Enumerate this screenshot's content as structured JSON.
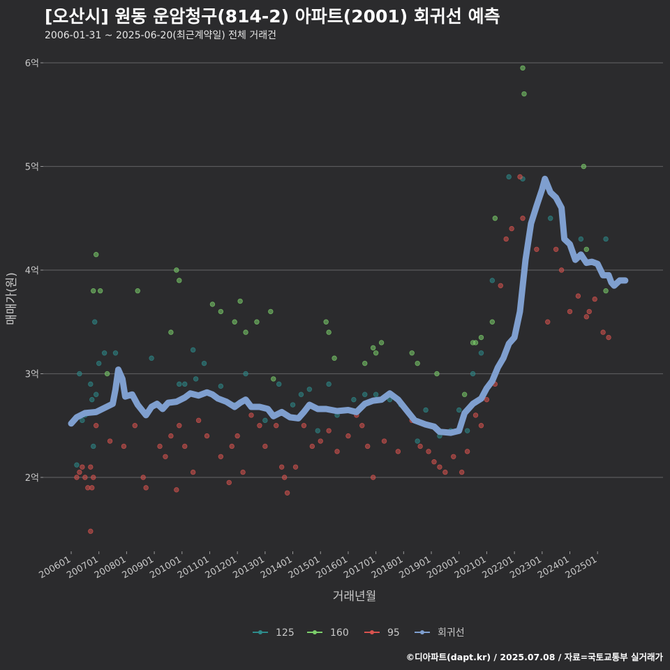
{
  "header": {
    "title": "[오산시] 원동 운암청구(814-2) 아파트(2001) 회귀선 예측",
    "subtitle": "2006-01-31 ~ 2025-06-20(최근계약일) 전체 거래건"
  },
  "footer": {
    "credit": "©디아파트(dapt.kr) / 2025.07.08 / 자료=국토교통부 실거래가"
  },
  "colors": {
    "background": "#2b2b2d",
    "grid": "#5a5a5c",
    "s125": "#2e8b8b",
    "s160": "#7ccf6b",
    "s95": "#d9534f",
    "regression": "#7f9fcf"
  },
  "chart_data": {
    "type": "scatter",
    "title": "[오산시] 원동 운암청구(814-2) 아파트(2001) 회귀선 예측",
    "xlabel": "거래년월",
    "ylabel": "매매가(원)",
    "xlim": [
      2006.0,
      2025.6
    ],
    "ylim": [
      1.3,
      6.4
    ],
    "y_unit": "억",
    "yticks": [
      2,
      3,
      4,
      5,
      6
    ],
    "ytick_labels": [
      "2억",
      "3억",
      "4억",
      "5억",
      "6억"
    ],
    "xticks": [
      2006,
      2007,
      2008,
      2009,
      2010,
      2011,
      2012,
      2013,
      2014,
      2015,
      2016,
      2017,
      2018,
      2019,
      2020,
      2021,
      2022,
      2023,
      2024,
      2025
    ],
    "xtick_labels": [
      "200601",
      "200701",
      "200801",
      "200901",
      "201001",
      "201101",
      "201201",
      "201301",
      "201401",
      "201501",
      "201601",
      "201701",
      "201801",
      "201901",
      "202001",
      "202101",
      "202201",
      "202301",
      "202401",
      "202501"
    ],
    "grid": "horizontal",
    "legend_position": "bottom",
    "series": [
      {
        "name": "125",
        "kind": "points",
        "color": "#2e8b8b",
        "points": [
          [
            2006.2,
            2.12
          ],
          [
            2006.3,
            3.0
          ],
          [
            2006.4,
            2.55
          ],
          [
            2006.5,
            2.6
          ],
          [
            2006.7,
            2.9
          ],
          [
            2006.75,
            2.75
          ],
          [
            2006.8,
            2.3
          ],
          [
            2006.85,
            3.5
          ],
          [
            2006.9,
            2.8
          ],
          [
            2007.0,
            3.1
          ],
          [
            2007.2,
            3.2
          ],
          [
            2007.6,
            3.2
          ],
          [
            2008.9,
            3.15
          ],
          [
            2009.9,
            2.9
          ],
          [
            2010.1,
            2.9
          ],
          [
            2010.4,
            3.23
          ],
          [
            2010.5,
            2.95
          ],
          [
            2010.8,
            3.1
          ],
          [
            2011.4,
            2.88
          ],
          [
            2011.9,
            2.7
          ],
          [
            2012.3,
            3.0
          ],
          [
            2013.0,
            2.55
          ],
          [
            2013.5,
            2.9
          ],
          [
            2014.0,
            2.7
          ],
          [
            2014.3,
            2.8
          ],
          [
            2014.6,
            2.85
          ],
          [
            2014.9,
            2.45
          ],
          [
            2015.3,
            2.9
          ],
          [
            2015.6,
            2.6
          ],
          [
            2016.2,
            2.75
          ],
          [
            2016.6,
            2.8
          ],
          [
            2017.0,
            2.8
          ],
          [
            2017.5,
            2.75
          ],
          [
            2017.9,
            2.7
          ],
          [
            2018.5,
            2.35
          ],
          [
            2018.8,
            2.65
          ],
          [
            2019.3,
            2.4
          ],
          [
            2019.7,
            2.45
          ],
          [
            2020.0,
            2.65
          ],
          [
            2020.3,
            2.45
          ],
          [
            2020.5,
            3.0
          ],
          [
            2020.8,
            3.2
          ],
          [
            2021.2,
            3.9
          ],
          [
            2021.8,
            4.9
          ],
          [
            2022.3,
            4.88
          ],
          [
            2023.3,
            4.5
          ],
          [
            2024.4,
            4.3
          ],
          [
            2025.3,
            4.3
          ]
        ]
      },
      {
        "name": "160",
        "kind": "points",
        "color": "#7ccf6b",
        "points": [
          [
            2006.8,
            3.8
          ],
          [
            2006.9,
            4.15
          ],
          [
            2007.05,
            3.8
          ],
          [
            2007.3,
            3.0
          ],
          [
            2008.4,
            3.8
          ],
          [
            2009.6,
            3.4
          ],
          [
            2009.8,
            4.0
          ],
          [
            2009.9,
            3.9
          ],
          [
            2011.1,
            3.67
          ],
          [
            2011.4,
            3.6
          ],
          [
            2011.9,
            3.5
          ],
          [
            2012.1,
            3.7
          ],
          [
            2012.3,
            3.4
          ],
          [
            2012.7,
            3.5
          ],
          [
            2013.2,
            3.6
          ],
          [
            2013.3,
            2.95
          ],
          [
            2015.2,
            3.5
          ],
          [
            2015.3,
            3.4
          ],
          [
            2015.5,
            3.15
          ],
          [
            2016.6,
            3.1
          ],
          [
            2016.9,
            3.25
          ],
          [
            2017.0,
            3.2
          ],
          [
            2017.2,
            3.3
          ],
          [
            2018.3,
            3.2
          ],
          [
            2018.5,
            3.1
          ],
          [
            2019.2,
            3.0
          ],
          [
            2020.2,
            2.8
          ],
          [
            2020.5,
            3.3
          ],
          [
            2020.6,
            3.3
          ],
          [
            2020.8,
            3.35
          ],
          [
            2021.2,
            3.5
          ],
          [
            2021.3,
            4.5
          ],
          [
            2022.3,
            5.95
          ],
          [
            2022.35,
            5.7
          ],
          [
            2024.5,
            5.0
          ],
          [
            2024.6,
            4.2
          ],
          [
            2025.1,
            4.0
          ],
          [
            2025.3,
            3.8
          ]
        ]
      },
      {
        "name": "95",
        "kind": "points",
        "color": "#d9534f",
        "points": [
          [
            2006.2,
            2.0
          ],
          [
            2006.3,
            2.05
          ],
          [
            2006.4,
            2.1
          ],
          [
            2006.5,
            2.0
          ],
          [
            2006.6,
            1.9
          ],
          [
            2006.7,
            2.1
          ],
          [
            2006.75,
            1.9
          ],
          [
            2006.8,
            2.0
          ],
          [
            2006.7,
            1.48
          ],
          [
            2006.9,
            2.5
          ],
          [
            2007.4,
            2.35
          ],
          [
            2007.9,
            2.3
          ],
          [
            2008.3,
            2.5
          ],
          [
            2008.6,
            2.0
          ],
          [
            2008.7,
            1.9
          ],
          [
            2009.2,
            2.3
          ],
          [
            2009.4,
            2.2
          ],
          [
            2009.6,
            2.4
          ],
          [
            2009.8,
            1.88
          ],
          [
            2009.9,
            2.5
          ],
          [
            2010.1,
            2.3
          ],
          [
            2010.4,
            2.05
          ],
          [
            2010.6,
            2.55
          ],
          [
            2010.9,
            2.4
          ],
          [
            2011.4,
            2.2
          ],
          [
            2011.8,
            2.3
          ],
          [
            2011.7,
            1.95
          ],
          [
            2012.0,
            2.4
          ],
          [
            2012.2,
            2.05
          ],
          [
            2012.5,
            2.6
          ],
          [
            2012.8,
            2.5
          ],
          [
            2013.0,
            2.3
          ],
          [
            2013.4,
            2.5
          ],
          [
            2013.6,
            2.1
          ],
          [
            2013.7,
            2.0
          ],
          [
            2013.8,
            1.85
          ],
          [
            2014.1,
            2.1
          ],
          [
            2014.4,
            2.5
          ],
          [
            2014.7,
            2.3
          ],
          [
            2015.0,
            2.35
          ],
          [
            2015.3,
            2.45
          ],
          [
            2015.6,
            2.25
          ],
          [
            2016.0,
            2.4
          ],
          [
            2016.3,
            2.6
          ],
          [
            2016.5,
            2.5
          ],
          [
            2016.7,
            2.3
          ],
          [
            2016.9,
            2.0
          ],
          [
            2017.3,
            2.35
          ],
          [
            2017.8,
            2.25
          ],
          [
            2018.3,
            2.55
          ],
          [
            2018.6,
            2.3
          ],
          [
            2018.9,
            2.25
          ],
          [
            2019.1,
            2.15
          ],
          [
            2019.3,
            2.1
          ],
          [
            2019.5,
            2.05
          ],
          [
            2019.8,
            2.2
          ],
          [
            2020.1,
            2.05
          ],
          [
            2020.3,
            2.25
          ],
          [
            2020.6,
            2.6
          ],
          [
            2020.8,
            2.5
          ],
          [
            2021.0,
            2.75
          ],
          [
            2021.3,
            2.9
          ],
          [
            2021.5,
            3.85
          ],
          [
            2021.7,
            4.3
          ],
          [
            2021.9,
            4.4
          ],
          [
            2022.2,
            4.9
          ],
          [
            2022.3,
            4.5
          ],
          [
            2022.8,
            4.2
          ],
          [
            2023.2,
            3.5
          ],
          [
            2023.5,
            4.2
          ],
          [
            2023.7,
            4.0
          ],
          [
            2024.0,
            3.6
          ],
          [
            2024.3,
            3.75
          ],
          [
            2024.6,
            3.55
          ],
          [
            2024.7,
            3.6
          ],
          [
            2024.9,
            3.72
          ],
          [
            2025.2,
            3.4
          ],
          [
            2025.4,
            3.35
          ]
        ]
      },
      {
        "name": "회귀선",
        "kind": "line",
        "color": "#7f9fcf",
        "points": [
          [
            2006.0,
            2.52
          ],
          [
            2006.2,
            2.58
          ],
          [
            2006.5,
            2.62
          ],
          [
            2006.9,
            2.63
          ],
          [
            2007.2,
            2.67
          ],
          [
            2007.5,
            2.71
          ],
          [
            2007.6,
            2.85
          ],
          [
            2007.7,
            3.04
          ],
          [
            2007.85,
            2.95
          ],
          [
            2007.95,
            2.78
          ],
          [
            2008.2,
            2.8
          ],
          [
            2008.4,
            2.7
          ],
          [
            2008.7,
            2.6
          ],
          [
            2008.9,
            2.68
          ],
          [
            2009.1,
            2.71
          ],
          [
            2009.3,
            2.66
          ],
          [
            2009.5,
            2.72
          ],
          [
            2009.8,
            2.73
          ],
          [
            2010.1,
            2.77
          ],
          [
            2010.3,
            2.81
          ],
          [
            2010.6,
            2.79
          ],
          [
            2010.9,
            2.82
          ],
          [
            2011.1,
            2.8
          ],
          [
            2011.3,
            2.76
          ],
          [
            2011.6,
            2.73
          ],
          [
            2011.9,
            2.68
          ],
          [
            2012.1,
            2.72
          ],
          [
            2012.3,
            2.75
          ],
          [
            2012.5,
            2.68
          ],
          [
            2012.8,
            2.68
          ],
          [
            2013.1,
            2.66
          ],
          [
            2013.3,
            2.59
          ],
          [
            2013.6,
            2.63
          ],
          [
            2013.9,
            2.58
          ],
          [
            2014.2,
            2.57
          ],
          [
            2014.4,
            2.63
          ],
          [
            2014.6,
            2.7
          ],
          [
            2014.9,
            2.66
          ],
          [
            2015.2,
            2.66
          ],
          [
            2015.6,
            2.64
          ],
          [
            2016.0,
            2.65
          ],
          [
            2016.3,
            2.63
          ],
          [
            2016.6,
            2.71
          ],
          [
            2016.9,
            2.74
          ],
          [
            2017.2,
            2.75
          ],
          [
            2017.5,
            2.81
          ],
          [
            2017.8,
            2.75
          ],
          [
            2018.1,
            2.65
          ],
          [
            2018.4,
            2.55
          ],
          [
            2018.8,
            2.51
          ],
          [
            2019.1,
            2.49
          ],
          [
            2019.3,
            2.44
          ],
          [
            2019.7,
            2.43
          ],
          [
            2020.0,
            2.45
          ],
          [
            2020.2,
            2.62
          ],
          [
            2020.5,
            2.71
          ],
          [
            2020.8,
            2.76
          ],
          [
            2021.0,
            2.86
          ],
          [
            2021.2,
            2.93
          ],
          [
            2021.4,
            3.06
          ],
          [
            2021.6,
            3.15
          ],
          [
            2021.8,
            3.29
          ],
          [
            2022.0,
            3.35
          ],
          [
            2022.2,
            3.6
          ],
          [
            2022.4,
            4.1
          ],
          [
            2022.6,
            4.45
          ],
          [
            2022.8,
            4.62
          ],
          [
            2023.0,
            4.78
          ],
          [
            2023.1,
            4.88
          ],
          [
            2023.3,
            4.75
          ],
          [
            2023.5,
            4.7
          ],
          [
            2023.7,
            4.6
          ],
          [
            2023.8,
            4.3
          ],
          [
            2024.0,
            4.25
          ],
          [
            2024.2,
            4.1
          ],
          [
            2024.4,
            4.15
          ],
          [
            2024.6,
            4.07
          ],
          [
            2024.8,
            4.08
          ],
          [
            2025.0,
            4.06
          ],
          [
            2025.2,
            3.95
          ],
          [
            2025.4,
            3.95
          ],
          [
            2025.5,
            3.88
          ],
          [
            2025.6,
            3.85
          ],
          [
            2025.8,
            3.9
          ],
          [
            2026.0,
            3.9
          ]
        ]
      }
    ]
  }
}
